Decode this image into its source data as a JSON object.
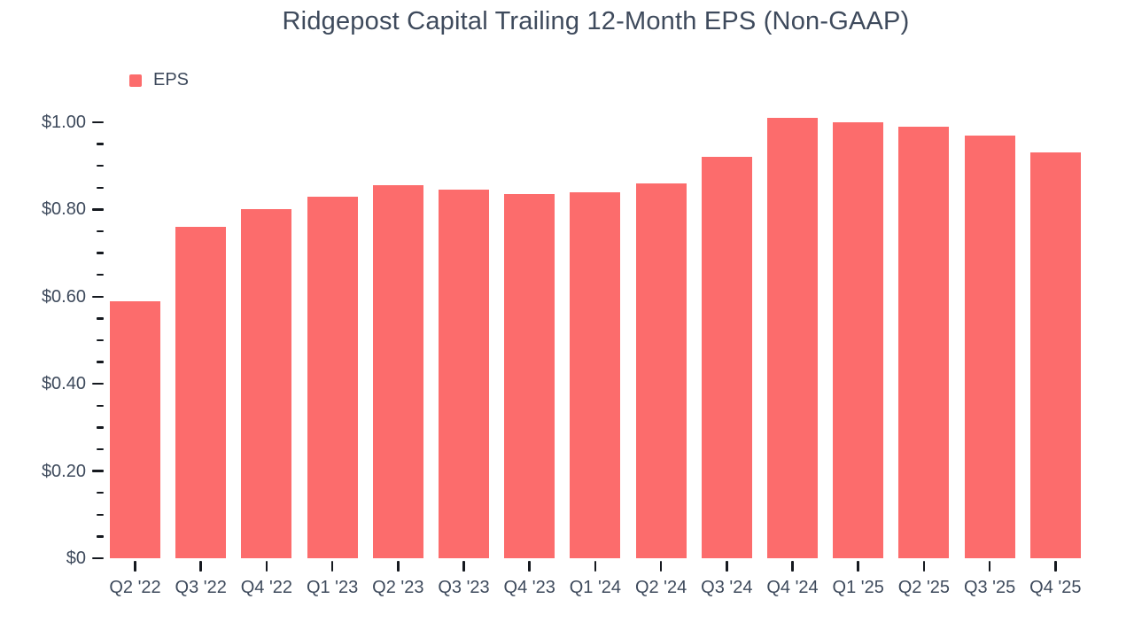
{
  "chart": {
    "legend_label": "EPS"
  },
  "chart_data": {
    "type": "bar",
    "title": "Ridgepost Capital Trailing 12-Month EPS (Non-GAAP)",
    "legend": [
      "EPS"
    ],
    "legend_position": "top-left",
    "categories": [
      "Q2 '22",
      "Q3 '22",
      "Q4 '22",
      "Q1 '23",
      "Q2 '23",
      "Q3 '23",
      "Q4 '23",
      "Q1 '24",
      "Q2 '24",
      "Q3 '24",
      "Q4 '24",
      "Q1 '25",
      "Q2 '25",
      "Q3 '25",
      "Q4 '25"
    ],
    "values": [
      0.59,
      0.76,
      0.8,
      0.83,
      0.855,
      0.845,
      0.835,
      0.84,
      0.86,
      0.92,
      1.01,
      1.0,
      0.99,
      0.97,
      0.93
    ],
    "xlabel": "",
    "ylabel": "",
    "ylim": [
      0,
      1.05
    ],
    "y_major_ticks": [
      0,
      0.2,
      0.4,
      0.6,
      0.8,
      1.0
    ],
    "y_tick_labels": [
      "$0",
      "$0.20",
      "$0.40",
      "$0.60",
      "$0.80",
      "$1.00"
    ],
    "y_minor_tick_step": 0.05,
    "grid": false,
    "bar_color": "#fc6c6c",
    "text_color": "#3e4a5c",
    "tick_color": "#15191f"
  }
}
